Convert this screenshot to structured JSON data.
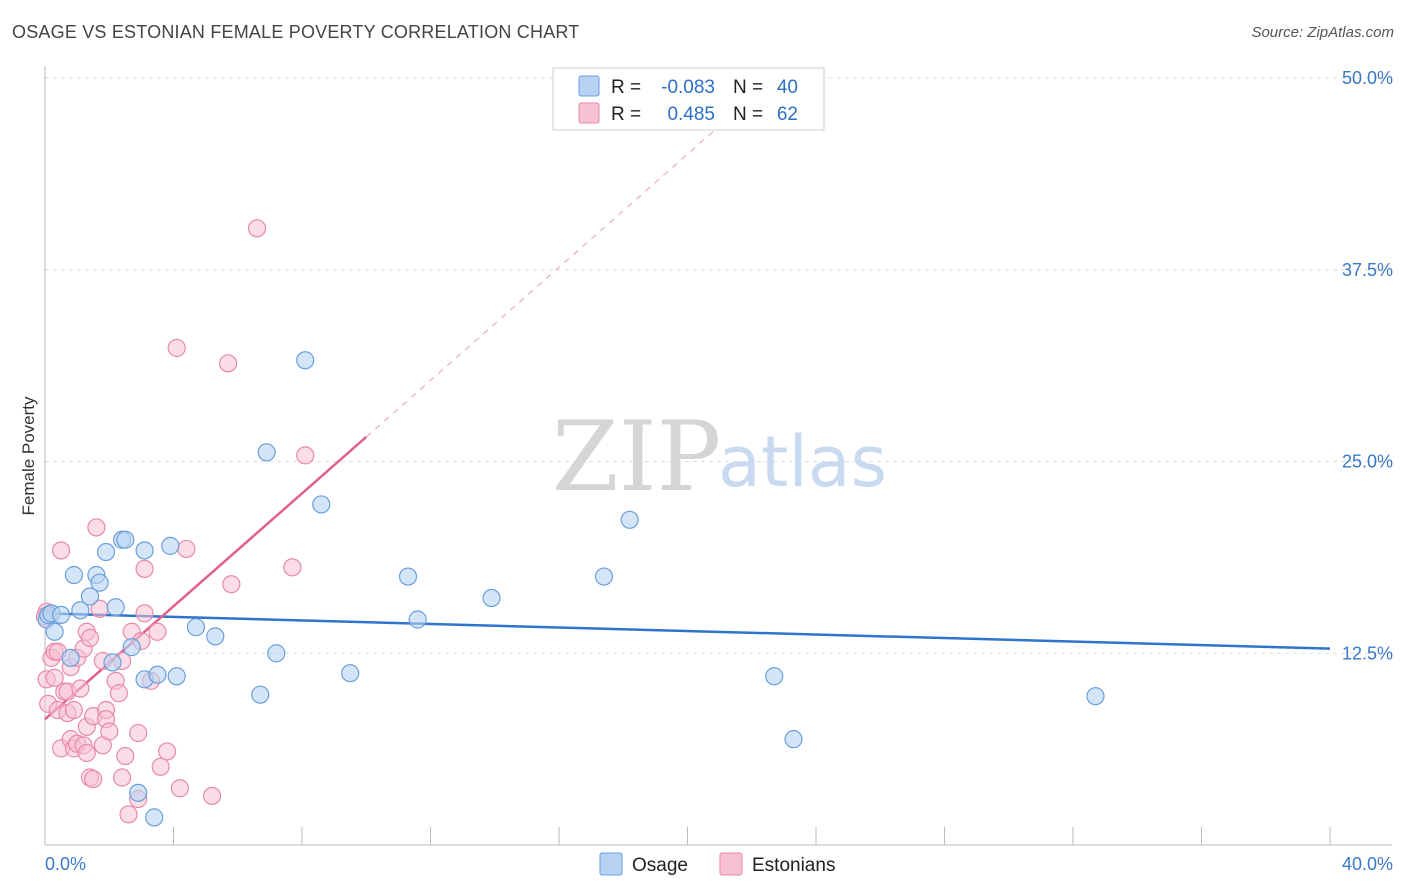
{
  "header": {
    "title": "OSAGE VS ESTONIAN FEMALE POVERTY CORRELATION CHART",
    "source": "Source: ZipAtlas.com"
  },
  "colors": {
    "osage_fill": "#b8d3f2",
    "osage_stroke": "#6b9fdc",
    "osage_line": "#2e74cc",
    "estonians_fill": "#f6c1d3",
    "estonians_stroke": "#e88aa9",
    "estonians_line": "#e0608e",
    "tick": "#3a78c9",
    "grid": "#dddddd"
  },
  "watermark": {
    "part1": "ZIP",
    "part2": "atlas"
  },
  "legend": {
    "rows": [
      {
        "r_label": "R =",
        "r_value": "-0.083",
        "n_label": "N =",
        "n_value": "40"
      },
      {
        "r_label": "R =",
        "r_value": "0.485",
        "n_label": "N =",
        "n_value": "62"
      }
    ]
  },
  "bottom_legend": [
    {
      "label": "Osage"
    },
    {
      "label": "Estonians"
    }
  ],
  "chart_data": {
    "type": "scatter",
    "title": "OSAGE VS ESTONIAN FEMALE POVERTY CORRELATION CHART",
    "xlabel": "",
    "ylabel": "Female Poverty",
    "xlim": [
      0,
      40
    ],
    "ylim": [
      0,
      50
    ],
    "x_tick_labels": [
      "0.0%",
      "40.0%"
    ],
    "y_ticks": [
      12.5,
      25.0,
      37.5,
      50.0
    ],
    "y_tick_labels": [
      "12.5%",
      "25.0%",
      "37.5%",
      "50.0%"
    ],
    "series": [
      {
        "name": "Osage",
        "r": -0.083,
        "n": 40,
        "trend": {
          "x": [
            0,
            40
          ],
          "y": [
            15.1,
            12.8
          ]
        },
        "points": [
          [
            0.05,
            14.7
          ],
          [
            0.1,
            15.0
          ],
          [
            0.2,
            15.1
          ],
          [
            0.3,
            13.9
          ],
          [
            0.5,
            15.0
          ],
          [
            0.8,
            12.2
          ],
          [
            0.9,
            17.6
          ],
          [
            1.1,
            15.3
          ],
          [
            1.4,
            16.2
          ],
          [
            1.6,
            17.6
          ],
          [
            1.7,
            17.1
          ],
          [
            1.9,
            19.1
          ],
          [
            2.1,
            11.9
          ],
          [
            2.2,
            15.5
          ],
          [
            2.4,
            19.9
          ],
          [
            2.5,
            19.9
          ],
          [
            2.7,
            12.9
          ],
          [
            2.9,
            3.4
          ],
          [
            3.1,
            10.8
          ],
          [
            3.1,
            19.2
          ],
          [
            3.4,
            1.8
          ],
          [
            3.5,
            11.1
          ],
          [
            3.9,
            19.5
          ],
          [
            4.1,
            11.0
          ],
          [
            4.7,
            14.2
          ],
          [
            5.3,
            13.6
          ],
          [
            6.7,
            9.8
          ],
          [
            6.9,
            25.6
          ],
          [
            7.2,
            12.5
          ],
          [
            8.1,
            31.6
          ],
          [
            8.6,
            22.2
          ],
          [
            9.5,
            11.2
          ],
          [
            11.3,
            17.5
          ],
          [
            11.6,
            14.7
          ],
          [
            13.9,
            16.1
          ],
          [
            17.4,
            17.5
          ],
          [
            18.2,
            21.2
          ],
          [
            22.7,
            11.0
          ],
          [
            23.3,
            6.9
          ],
          [
            32.7,
            9.7
          ]
        ]
      },
      {
        "name": "Estonians",
        "r": 0.485,
        "n": 62,
        "trend": {
          "x": [
            0,
            10
          ],
          "y": [
            8.2,
            26.6
          ]
        },
        "trend_extension": {
          "x": [
            10,
            21.5
          ],
          "y": [
            26.6,
            47.8
          ]
        },
        "points": [
          [
            0.05,
            15.2
          ],
          [
            0.05,
            10.8
          ],
          [
            0.1,
            9.2
          ],
          [
            0.2,
            12.2
          ],
          [
            0.3,
            12.6
          ],
          [
            0.3,
            10.9
          ],
          [
            0.4,
            12.6
          ],
          [
            0.4,
            8.8
          ],
          [
            0.5,
            19.2
          ],
          [
            0.5,
            6.3
          ],
          [
            0.6,
            10.0
          ],
          [
            0.7,
            8.6
          ],
          [
            0.7,
            10.0
          ],
          [
            0.8,
            11.6
          ],
          [
            0.8,
            6.9
          ],
          [
            0.9,
            8.8
          ],
          [
            0.9,
            6.3
          ],
          [
            1.0,
            12.2
          ],
          [
            1.0,
            6.6
          ],
          [
            1.1,
            10.2
          ],
          [
            1.2,
            6.5
          ],
          [
            1.2,
            12.8
          ],
          [
            1.3,
            13.9
          ],
          [
            1.3,
            6.0
          ],
          [
            1.3,
            7.7
          ],
          [
            1.4,
            13.5
          ],
          [
            1.4,
            4.4
          ],
          [
            1.5,
            4.3
          ],
          [
            1.5,
            8.4
          ],
          [
            1.6,
            20.7
          ],
          [
            1.7,
            15.4
          ],
          [
            1.8,
            12.0
          ],
          [
            1.8,
            6.5
          ],
          [
            1.9,
            8.8
          ],
          [
            1.9,
            8.2
          ],
          [
            2.0,
            7.4
          ],
          [
            2.2,
            10.7
          ],
          [
            2.3,
            9.9
          ],
          [
            2.4,
            12.0
          ],
          [
            2.4,
            4.4
          ],
          [
            2.5,
            5.8
          ],
          [
            2.6,
            2.0
          ],
          [
            2.7,
            13.9
          ],
          [
            2.9,
            3.0
          ],
          [
            2.9,
            7.3
          ],
          [
            3.0,
            13.3
          ],
          [
            3.1,
            18.0
          ],
          [
            3.1,
            15.1
          ],
          [
            3.3,
            10.7
          ],
          [
            3.5,
            13.9
          ],
          [
            3.6,
            5.1
          ],
          [
            3.8,
            6.1
          ],
          [
            4.1,
            32.4
          ],
          [
            4.2,
            3.7
          ],
          [
            4.4,
            19.3
          ],
          [
            5.2,
            3.2
          ],
          [
            5.7,
            31.4
          ],
          [
            5.8,
            17.0
          ],
          [
            6.6,
            40.2
          ],
          [
            7.7,
            18.1
          ],
          [
            8.1,
            25.4
          ],
          [
            0.0,
            14.9
          ]
        ]
      }
    ]
  }
}
